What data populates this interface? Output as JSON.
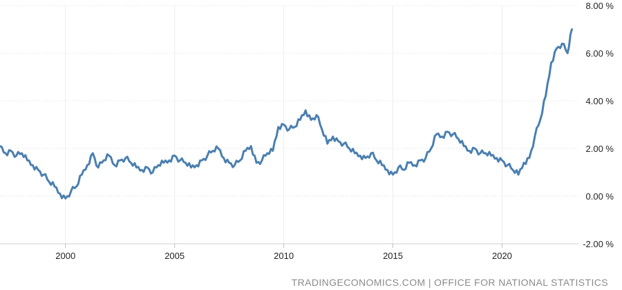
{
  "source_text": "TRADINGECONOMICS.COM  |  OFFICE FOR NATIONAL STATISTICS",
  "chart_data": {
    "type": "line",
    "title": "",
    "xlabel": "",
    "ylabel": "",
    "x_ticks": [
      2000,
      2005,
      2010,
      2015,
      2020
    ],
    "y_ticks": [
      "8.00 %",
      "6.00 %",
      "4.00 %",
      "2.00 %",
      "0.00 %",
      "-2.00 %"
    ],
    "y_tick_values": [
      8,
      6,
      4,
      2,
      0,
      -2
    ],
    "xlim": [
      1997.0,
      2023.5
    ],
    "ylim": [
      -2,
      8
    ],
    "grid": true,
    "line_color": "#4a7fb0",
    "series": [
      {
        "x": [
          1997.0,
          1997.25,
          1997.5,
          1997.75,
          1998.0,
          1998.25,
          1998.5,
          1998.75,
          1999.0,
          1999.25,
          1999.5,
          1999.75,
          2000.0,
          2000.25,
          2000.5,
          2000.75,
          2001.0,
          2001.25,
          2001.5,
          2001.75,
          2002.0,
          2002.25,
          2002.5,
          2002.75,
          2003.0,
          2003.25,
          2003.5,
          2003.75,
          2004.0,
          2004.25,
          2004.5,
          2004.75,
          2005.0,
          2005.25,
          2005.5,
          2005.75,
          2006.0,
          2006.25,
          2006.5,
          2006.75,
          2007.0,
          2007.25,
          2007.5,
          2007.75,
          2008.0,
          2008.25,
          2008.5,
          2008.75,
          2009.0,
          2009.25,
          2009.5,
          2009.75,
          2010.0,
          2010.25,
          2010.5,
          2010.75,
          2011.0,
          2011.25,
          2011.5,
          2011.75,
          2012.0,
          2012.25,
          2012.5,
          2012.75,
          2013.0,
          2013.25,
          2013.5,
          2013.75,
          2014.0,
          2014.25,
          2014.5,
          2014.75,
          2015.0,
          2015.25,
          2015.5,
          2015.75,
          2016.0,
          2016.25,
          2016.5,
          2016.75,
          2017.0,
          2017.25,
          2017.5,
          2017.75,
          2018.0,
          2018.25,
          2018.5,
          2018.75,
          2019.0,
          2019.25,
          2019.5,
          2019.75,
          2020.0,
          2020.25,
          2020.5,
          2020.75,
          2021.0,
          2021.25,
          2021.5,
          2021.75,
          2022.0,
          2022.25,
          2022.5,
          2022.75,
          2023.0,
          2023.2
        ],
        "y": [
          2.1,
          1.8,
          1.9,
          1.7,
          1.8,
          1.5,
          1.3,
          1.1,
          0.9,
          0.6,
          0.4,
          0.1,
          -0.1,
          0.2,
          0.4,
          0.9,
          1.3,
          1.8,
          1.2,
          1.5,
          1.7,
          1.3,
          1.5,
          1.6,
          1.4,
          1.2,
          1.1,
          1.2,
          1.0,
          1.3,
          1.4,
          1.5,
          1.7,
          1.5,
          1.4,
          1.2,
          1.3,
          1.5,
          1.7,
          1.9,
          2.0,
          1.6,
          1.4,
          1.3,
          1.5,
          1.9,
          2.1,
          1.4,
          1.5,
          1.8,
          1.9,
          2.9,
          3.0,
          2.8,
          2.9,
          3.2,
          3.6,
          3.2,
          3.4,
          2.8,
          2.2,
          2.5,
          2.3,
          2.2,
          2.0,
          1.8,
          1.7,
          1.6,
          1.8,
          1.5,
          1.3,
          1.1,
          0.9,
          1.2,
          1.1,
          1.4,
          1.3,
          1.5,
          1.6,
          2.0,
          2.6,
          2.5,
          2.7,
          2.6,
          2.4,
          2.1,
          1.9,
          2.0,
          1.8,
          1.8,
          1.7,
          1.6,
          1.5,
          1.3,
          1.1,
          0.9,
          1.4,
          1.6,
          2.5,
          3.2,
          4.2,
          5.6,
          6.2,
          6.4,
          6.0,
          7.0
        ]
      }
    ]
  }
}
